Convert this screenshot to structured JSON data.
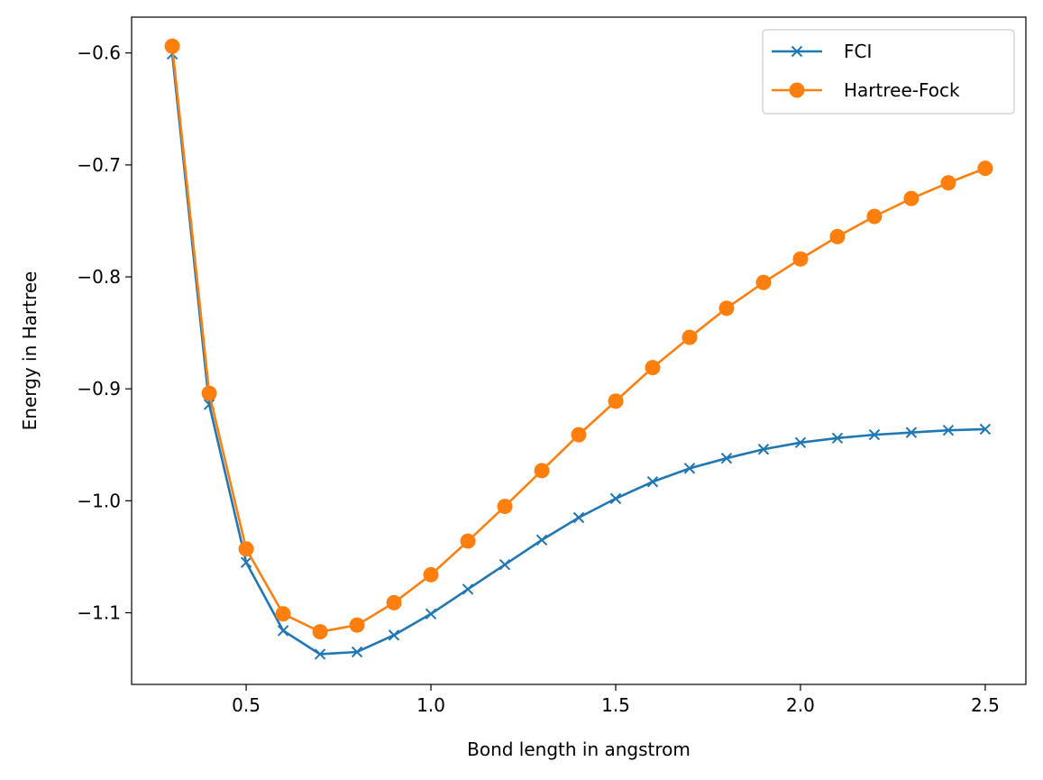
{
  "chart_data": {
    "type": "line",
    "title": "",
    "xlabel": "Bond length in angstrom",
    "ylabel": "Energy in Hartree",
    "xlim": [
      0.19,
      2.61
    ],
    "ylim": [
      -1.164,
      -0.568
    ],
    "xticks": [
      0.5,
      1.0,
      1.5,
      2.0,
      2.5
    ],
    "xtick_labels": [
      "0.5",
      "1.0",
      "1.5",
      "2.0",
      "2.5"
    ],
    "yticks": [
      -1.1,
      -1.0,
      -0.9,
      -0.8,
      -0.7,
      -0.6
    ],
    "ytick_labels": [
      "−1.1",
      "−1.0",
      "−0.9",
      "−0.8",
      "−0.7",
      "−0.6"
    ],
    "grid": false,
    "legend_position": "top-right",
    "x": [
      0.3,
      0.4,
      0.5,
      0.6,
      0.7,
      0.8,
      0.9,
      1.0,
      1.1,
      1.2,
      1.3,
      1.4,
      1.5,
      1.6,
      1.7,
      1.8,
      1.9,
      2.0,
      2.1,
      2.2,
      2.3,
      2.4,
      2.5
    ],
    "series": [
      {
        "name": "FCI",
        "color": "#1f77b4",
        "marker": "x",
        "values": [
          -0.601,
          -0.914,
          -1.055,
          -1.116,
          -1.137,
          -1.135,
          -1.12,
          -1.101,
          -1.079,
          -1.057,
          -1.035,
          -1.015,
          -0.998,
          -0.983,
          -0.971,
          -0.962,
          -0.954,
          -0.948,
          -0.944,
          -0.941,
          -0.939,
          -0.937,
          -0.936
        ]
      },
      {
        "name": "Hartree-Fock",
        "color": "#ff7f0e",
        "marker": "o",
        "values": [
          -0.594,
          -0.904,
          -1.043,
          -1.101,
          -1.117,
          -1.111,
          -1.091,
          -1.066,
          -1.036,
          -1.005,
          -0.973,
          -0.941,
          -0.911,
          -0.881,
          -0.854,
          -0.828,
          -0.805,
          -0.784,
          -0.764,
          -0.746,
          -0.73,
          -0.716,
          -0.703
        ]
      }
    ]
  }
}
